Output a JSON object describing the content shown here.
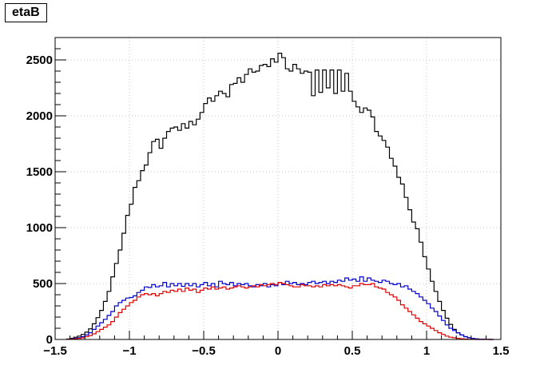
{
  "chart_data": {
    "type": "line",
    "title": "etaB",
    "xlabel": "",
    "ylabel": "",
    "xlim": [
      -1.5,
      1.5
    ],
    "ylim": [
      0,
      2700
    ],
    "grid": true,
    "x_ticks": [
      -1.5,
      -1,
      -0.5,
      0,
      0.5,
      1,
      1.5
    ],
    "x_tick_labels": [
      "−1.5",
      "−1",
      "−0.5",
      "0",
      "0.5",
      "1",
      "1.5"
    ],
    "y_ticks": [
      0,
      500,
      1000,
      1500,
      2000,
      2500
    ],
    "y_tick_labels": [
      "0",
      "500",
      "1000",
      "1500",
      "2000",
      "2500"
    ],
    "bin_width": 0.025,
    "bin_lo": [
      -1.425,
      -1.4,
      -1.375,
      -1.35,
      -1.325,
      -1.3,
      -1.275,
      -1.25,
      -1.225,
      -1.2,
      -1.175,
      -1.15,
      -1.125,
      -1.1,
      -1.075,
      -1.05,
      -1.025,
      -1.0,
      -0.975,
      -0.95,
      -0.925,
      -0.9,
      -0.875,
      -0.85,
      -0.825,
      -0.8,
      -0.775,
      -0.75,
      -0.725,
      -0.7,
      -0.675,
      -0.65,
      -0.625,
      -0.6,
      -0.575,
      -0.55,
      -0.525,
      -0.5,
      -0.475,
      -0.45,
      -0.425,
      -0.4,
      -0.375,
      -0.35,
      -0.325,
      -0.3,
      -0.275,
      -0.25,
      -0.225,
      -0.2,
      -0.175,
      -0.15,
      -0.125,
      -0.1,
      -0.075,
      -0.05,
      -0.025,
      0.0,
      0.025,
      0.05,
      0.075,
      0.1,
      0.125,
      0.15,
      0.175,
      0.2,
      0.225,
      0.25,
      0.275,
      0.3,
      0.325,
      0.35,
      0.375,
      0.4,
      0.425,
      0.45,
      0.475,
      0.5,
      0.525,
      0.55,
      0.575,
      0.6,
      0.625,
      0.65,
      0.675,
      0.7,
      0.725,
      0.75,
      0.775,
      0.8,
      0.825,
      0.85,
      0.875,
      0.9,
      0.925,
      0.95,
      0.975,
      1.0,
      1.025,
      1.05,
      1.075,
      1.1,
      1.125,
      1.15,
      1.175,
      1.2,
      1.225,
      1.25,
      1.275,
      1.3,
      1.325,
      1.35,
      1.375,
      1.4,
      1.425
    ],
    "series": [
      {
        "color": "#000000",
        "values": [
          5,
          10,
          20,
          30,
          45,
          65,
          95,
          140,
          195,
          260,
          340,
          430,
          560,
          680,
          800,
          950,
          1110,
          1210,
          1360,
          1420,
          1510,
          1560,
          1670,
          1770,
          1790,
          1710,
          1800,
          1860,
          1890,
          1900,
          1870,
          1930,
          1890,
          1950,
          1920,
          1970,
          2030,
          2110,
          2160,
          2130,
          2180,
          2220,
          2200,
          2170,
          2280,
          2290,
          2340,
          2300,
          2370,
          2420,
          2390,
          2400,
          2450,
          2460,
          2440,
          2510,
          2480,
          2560,
          2520,
          2420,
          2400,
          2460,
          2420,
          2380,
          2400,
          2390,
          2180,
          2410,
          2210,
          2410,
          2250,
          2410,
          2200,
          2410,
          2220,
          2380,
          2220,
          2130,
          2080,
          2030,
          2070,
          2050,
          1990,
          1860,
          1820,
          1780,
          1720,
          1620,
          1550,
          1450,
          1390,
          1270,
          1160,
          1050,
          990,
          870,
          740,
          630,
          520,
          430,
          340,
          260,
          190,
          135,
          90,
          60,
          40,
          25,
          15,
          8,
          5,
          3,
          2,
          1,
          0
        ]
      },
      {
        "color": "#0000cc",
        "values": [
          3,
          5,
          10,
          15,
          25,
          40,
          60,
          90,
          120,
          150,
          180,
          215,
          250,
          300,
          330,
          350,
          370,
          375,
          390,
          420,
          440,
          470,
          465,
          490,
          470,
          480,
          510,
          470,
          500,
          480,
          500,
          475,
          500,
          480,
          500,
          470,
          490,
          510,
          480,
          500,
          470,
          520,
          500,
          490,
          510,
          480,
          500,
          490,
          500,
          480,
          470,
          490,
          480,
          500,
          470,
          490,
          480,
          510,
          490,
          520,
          500,
          510,
          490,
          500,
          490,
          510,
          520,
          500,
          510,
          520,
          500,
          520,
          510,
          530,
          520,
          550,
          530,
          540,
          520,
          560,
          520,
          550,
          530,
          520,
          510,
          530,
          520,
          500,
          490,
          500,
          470,
          480,
          450,
          430,
          410,
          380,
          350,
          320,
          280,
          250,
          210,
          170,
          130,
          100,
          80,
          60,
          40,
          25,
          15,
          8,
          5,
          3,
          2,
          1,
          0
        ]
      },
      {
        "color": "#dd0000",
        "values": [
          2,
          3,
          5,
          10,
          15,
          25,
          35,
          50,
          70,
          90,
          110,
          130,
          160,
          200,
          240,
          270,
          300,
          330,
          350,
          380,
          400,
          410,
          400,
          410,
          390,
          410,
          430,
          420,
          440,
          430,
          450,
          430,
          460,
          440,
          450,
          420,
          440,
          460,
          450,
          470,
          450,
          460,
          470,
          450,
          460,
          470,
          480,
          470,
          460,
          470,
          480,
          470,
          490,
          480,
          490,
          500,
          490,
          510,
          500,
          490,
          480,
          470,
          470,
          490,
          480,
          480,
          470,
          480,
          470,
          490,
          480,
          490,
          480,
          490,
          480,
          470,
          460,
          480,
          480,
          500,
          490,
          490,
          500,
          470,
          460,
          450,
          420,
          400,
          380,
          350,
          310,
          280,
          250,
          220,
          190,
          160,
          140,
          120,
          100,
          80,
          60,
          45,
          30,
          20,
          15,
          10,
          6,
          4,
          2,
          1,
          0,
          0,
          0,
          0,
          0
        ]
      }
    ]
  }
}
